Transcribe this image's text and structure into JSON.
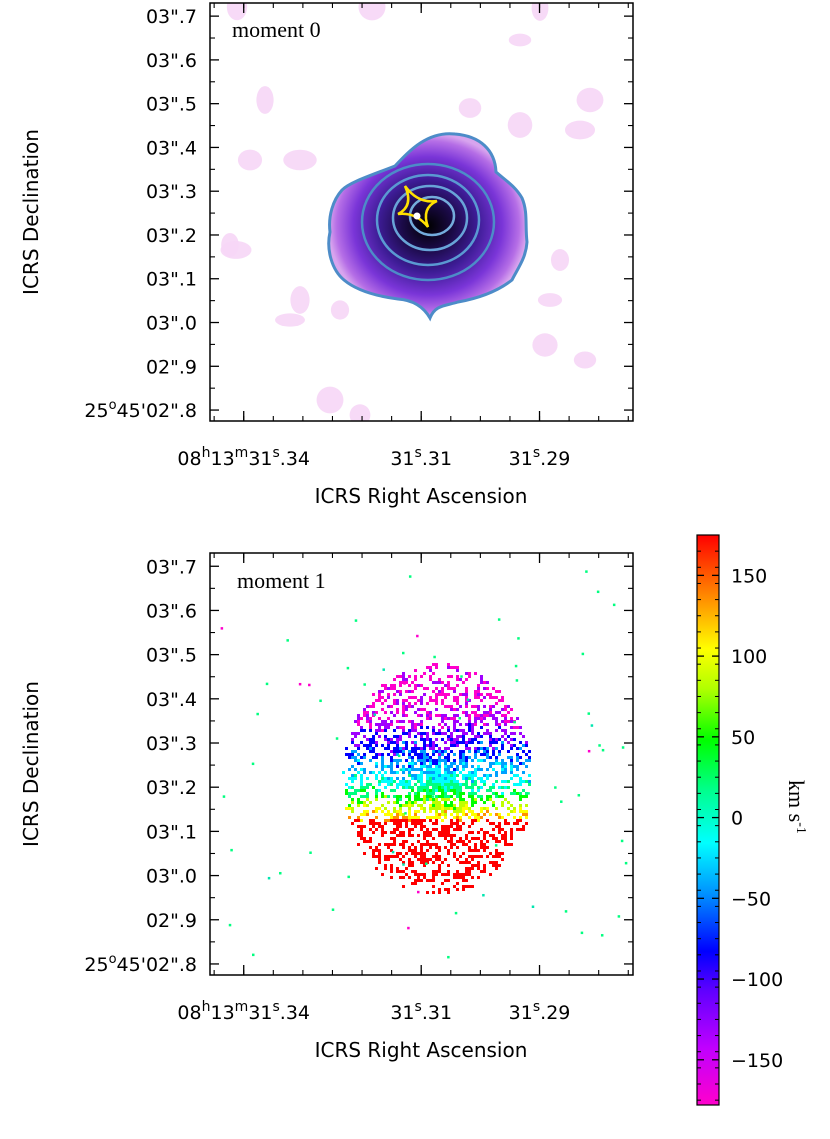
{
  "chart_data": [
    {
      "type": "heatmap",
      "panel_label": "moment 0",
      "xlabel": "ICRS Right Ascension",
      "ylabel": "ICRS Declination",
      "x_ticks": [
        {
          "value": 31.34,
          "label": [
            "08",
            "h",
            "13",
            "m",
            "31",
            "s",
            ".34"
          ]
        },
        {
          "value": 31.31,
          "label": [
            "31",
            "s",
            ".31"
          ]
        },
        {
          "value": 31.29,
          "label": [
            "31",
            "s",
            ".29"
          ]
        }
      ],
      "y_ticks": [
        {
          "value": 0.7,
          "label": "03\".7"
        },
        {
          "value": 0.6,
          "label": "03\".6"
        },
        {
          "value": 0.5,
          "label": "03\".5"
        },
        {
          "value": 0.4,
          "label": "03\".4"
        },
        {
          "value": 0.3,
          "label": "03\".3"
        },
        {
          "value": 0.2,
          "label": "03\".2"
        },
        {
          "value": 0.1,
          "label": "03\".1"
        },
        {
          "value": 0.0,
          "label": "03\".0"
        },
        {
          "value": -0.1,
          "label": "02\".9"
        },
        {
          "value": -0.2,
          "label": "25°45'02\".8",
          "parts": [
            "25",
            "o",
            "45'02\".8"
          ]
        }
      ],
      "xlim": [
        31.3457,
        31.2742
      ],
      "ylim": [
        -0.225,
        0.73
      ],
      "emission_center": {
        "ra": 31.3075,
        "dec": 0.22
      },
      "contour_count": 5,
      "caustic_color": "#ffe000",
      "source_marker_color": "#ffffff",
      "contour_color": "#4d8cc8",
      "colormap": [
        "#ffffff",
        "#f3c6f3",
        "#c97bea",
        "#8a3bd8",
        "#3b1a8a",
        "#000000"
      ]
    },
    {
      "type": "heatmap",
      "panel_label": "moment 1",
      "xlabel": "ICRS Right Ascension",
      "ylabel": "ICRS Declination",
      "x_ticks": [
        {
          "value": 31.34,
          "label": [
            "08",
            "h",
            "13",
            "m",
            "31",
            "s",
            ".34"
          ]
        },
        {
          "value": 31.31,
          "label": [
            "31",
            "s",
            ".31"
          ]
        },
        {
          "value": 31.29,
          "label": [
            "31",
            "s",
            ".29"
          ]
        }
      ],
      "y_ticks": [
        {
          "value": 0.7,
          "label": "03\".7"
        },
        {
          "value": 0.6,
          "label": "03\".6"
        },
        {
          "value": 0.5,
          "label": "03\".5"
        },
        {
          "value": 0.4,
          "label": "03\".4"
        },
        {
          "value": 0.3,
          "label": "03\".3"
        },
        {
          "value": 0.2,
          "label": "03\".2"
        },
        {
          "value": 0.1,
          "label": "03\".1"
        },
        {
          "value": 0.0,
          "label": "03\".0"
        },
        {
          "value": -0.1,
          "label": "02\".9"
        },
        {
          "value": -0.2,
          "label": "25°45'02\".8",
          "parts": [
            "25",
            "o",
            "45'02\".8"
          ]
        }
      ],
      "xlim": [
        31.3457,
        31.2742
      ],
      "ylim": [
        -0.225,
        0.73
      ],
      "velocity_gradient_kms": [
        {
          "dec": 0.38,
          "velocity": -160
        },
        {
          "dec": 0.28,
          "velocity": -90
        },
        {
          "dec": 0.2,
          "velocity": -10
        },
        {
          "dec": 0.13,
          "velocity": 120
        }
      ],
      "colorbar": {
        "unit": [
          "km s",
          "-1"
        ],
        "range": [
          -178,
          175
        ],
        "ticks": [
          {
            "value": 150,
            "label": "150"
          },
          {
            "value": 100,
            "label": "100"
          },
          {
            "value": 50,
            "label": "50"
          },
          {
            "value": 0,
            "label": "0"
          },
          {
            "value": -50,
            "label": "−50"
          },
          {
            "value": -100,
            "label": "−100"
          },
          {
            "value": -150,
            "label": "−150"
          }
        ],
        "colors": [
          "#ff00cc",
          "#a000ff",
          "#0000ff",
          "#00a0ff",
          "#00ffff",
          "#00ff80",
          "#00ff00",
          "#c0ff00",
          "#ffff00",
          "#ff9000",
          "#ff0000"
        ]
      }
    }
  ]
}
